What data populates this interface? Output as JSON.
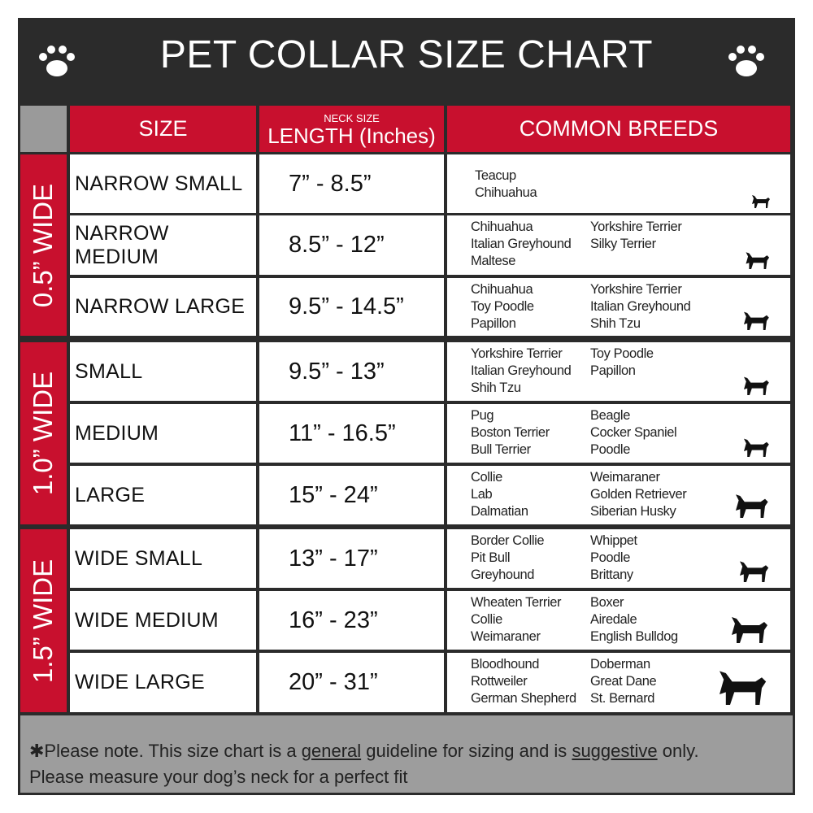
{
  "header": {
    "title": "PET COLLAR SIZE CHART"
  },
  "columns": {
    "size": "SIZE",
    "length_note": "NECK SIZE",
    "length": "LENGTH (Inches)",
    "breeds": "COMMON BREEDS"
  },
  "groups": [
    {
      "label": "0.5” WIDE",
      "rows": [
        {
          "size": "NARROW SMALL",
          "length": "7” - 8.5”",
          "breeds": [
            [
              "Teacup",
              "Chihuahua"
            ]
          ]
        },
        {
          "size": "NARROW MEDIUM",
          "length": "8.5” - 12”",
          "breeds": [
            [
              "Chihuahua",
              "Italian Greyhound",
              "Maltese"
            ],
            [
              "Yorkshire Terrier",
              "Silky Terrier"
            ]
          ]
        },
        {
          "size": "NARROW LARGE",
          "length": "9.5” - 14.5”",
          "breeds": [
            [
              "Chihuahua",
              "Toy Poodle",
              "Papillon"
            ],
            [
              "Yorkshire Terrier",
              "Italian Greyhound",
              "Shih Tzu"
            ]
          ]
        }
      ]
    },
    {
      "label": "1.0” WIDE",
      "rows": [
        {
          "size": "SMALL",
          "length": "9.5” - 13”",
          "breeds": [
            [
              "Yorkshire Terrier",
              "Italian Greyhound",
              "Shih Tzu"
            ],
            [
              "Toy Poodle",
              "Papillon"
            ]
          ]
        },
        {
          "size": "MEDIUM",
          "length": "11” - 16.5”",
          "breeds": [
            [
              "Pug",
              "Boston Terrier",
              "Bull Terrier"
            ],
            [
              "Beagle",
              "Cocker Spaniel",
              "Poodle"
            ]
          ]
        },
        {
          "size": "LARGE",
          "length": "15” - 24”",
          "breeds": [
            [
              "Collie",
              "Lab",
              "Dalmatian"
            ],
            [
              "Weimaraner",
              "Golden Retriever",
              "Siberian Husky"
            ]
          ]
        }
      ]
    },
    {
      "label": "1.5” WIDE",
      "rows": [
        {
          "size": "WIDE SMALL",
          "length": "13” - 17”",
          "breeds": [
            [
              "Border Collie",
              "Pit Bull",
              "Greyhound"
            ],
            [
              "Whippet",
              "Poodle",
              "Brittany"
            ]
          ]
        },
        {
          "size": "WIDE MEDIUM",
          "length": "16” - 23”",
          "breeds": [
            [
              "Wheaten Terrier",
              "Collie",
              "Weimaraner"
            ],
            [
              "Boxer",
              "Airedale",
              "English Bulldog"
            ]
          ]
        },
        {
          "size": "WIDE LARGE",
          "length": "20” - 31”",
          "breeds": [
            [
              "Bloodhound",
              "Rottweiler",
              "German Shepherd"
            ],
            [
              "Doberman",
              "Great Dane",
              "St. Bernard"
            ]
          ]
        }
      ]
    }
  ],
  "footer": {
    "line1": [
      "✱Please note. This size chart is a",
      "general",
      "guideline for sizing and is",
      "suggestive",
      "only."
    ],
    "line2": "Please measure your dog’s neck for a perfect fit"
  }
}
